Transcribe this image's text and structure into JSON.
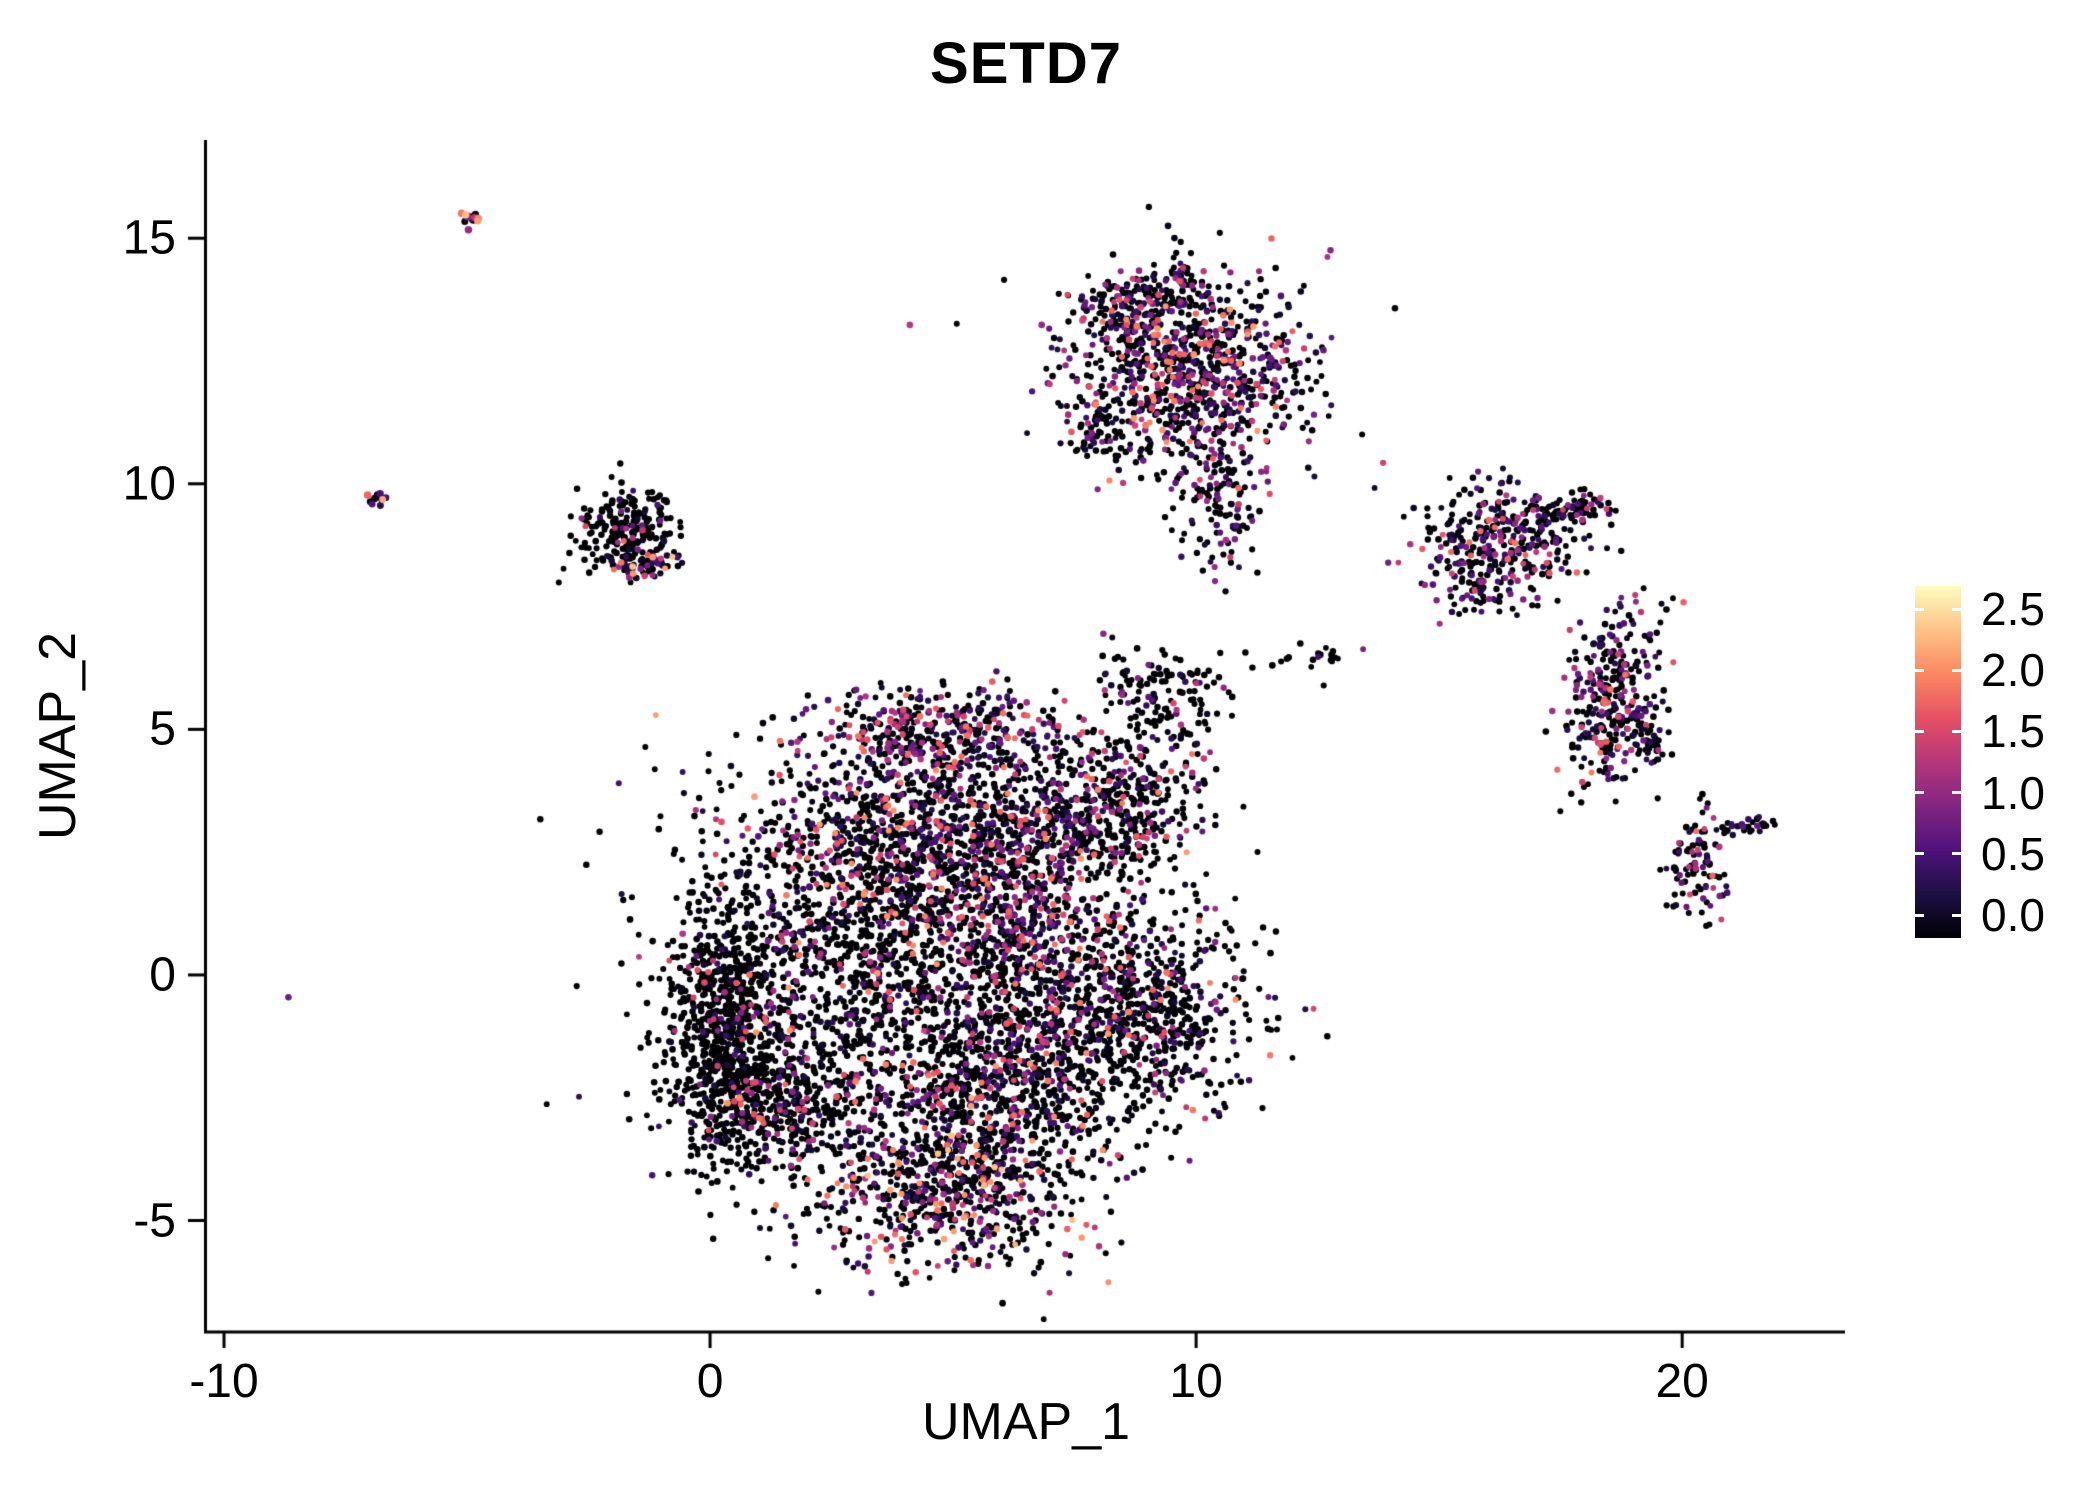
{
  "chart_data": {
    "type": "scatter",
    "title": "SETD7",
    "xlabel": "UMAP_1",
    "ylabel": "UMAP_2",
    "xlim": [
      -10.35,
      23.35
    ],
    "ylim": [
      -7.27,
      17.0
    ],
    "x_ticks": [
      -10,
      0,
      10,
      20
    ],
    "y_ticks": [
      -5,
      0,
      5,
      10,
      15
    ],
    "grid": false,
    "legend_position": "right",
    "colorbar": {
      "limits": [
        0,
        2.5
      ],
      "ticks": [
        0,
        0.5,
        1,
        1.5,
        2,
        2.5
      ],
      "colormap": "magma"
    },
    "colormap_stops": [
      [
        0,
        "#000004"
      ],
      [
        0.125,
        "#1c1044"
      ],
      [
        0.25,
        "#4f127b"
      ],
      [
        0.375,
        "#812581"
      ],
      [
        0.5,
        "#b5367a"
      ],
      [
        0.625,
        "#e55064"
      ],
      [
        0.75,
        "#fb8761"
      ],
      [
        0.875,
        "#fec287"
      ],
      [
        1,
        "#fcfdbf"
      ]
    ],
    "style": {
      "background": "#ffffff",
      "axis_color": "#000000",
      "text_color": "#000000"
    },
    "clusters": [
      {
        "name": "center-top-lobe",
        "n": 380,
        "cx": 4.6,
        "cy": 4.95,
        "sx": 1.25,
        "sy": 0.45,
        "p0": 0.32,
        "max": 1.8,
        "pow": 2.0
      },
      {
        "name": "center-upper-body",
        "n": 760,
        "cx": 4.4,
        "cy": 2.9,
        "sx": 1.9,
        "sy": 0.85,
        "p0": 0.42,
        "max": 2.0,
        "pow": 2.2
      },
      {
        "name": "center-main-body",
        "n": 1700,
        "cx": 3.6,
        "cy": 0.2,
        "sx": 2.1,
        "sy": 1.9,
        "p0": 0.62,
        "max": 2.0,
        "pow": 2.4
      },
      {
        "name": "center-left-arm",
        "n": 760,
        "cx": 0.35,
        "cy": -1.1,
        "sx": 0.55,
        "sy": 1.25,
        "p0": 0.88,
        "max": 1.6,
        "pow": 2.5
      },
      {
        "name": "center-left-lower",
        "n": 320,
        "cx": 1.3,
        "cy": -2.7,
        "sx": 0.95,
        "sy": 0.7,
        "p0": 0.72,
        "max": 2.0,
        "pow": 2.0
      },
      {
        "name": "center-bottom-lobe",
        "n": 730,
        "cx": 4.8,
        "cy": -4.2,
        "sx": 1.5,
        "sy": 0.95,
        "p0": 0.46,
        "max": 2.2,
        "pow": 2.0
      },
      {
        "name": "center-mid-right",
        "n": 600,
        "cx": 6.6,
        "cy": 1.0,
        "sx": 1.0,
        "sy": 1.7,
        "p0": 0.46,
        "max": 1.8,
        "pow": 2.0
      },
      {
        "name": "center-right-upper-lobe",
        "n": 380,
        "cx": 8.4,
        "cy": 3.5,
        "sx": 0.95,
        "sy": 0.75,
        "p0": 0.62,
        "max": 2.0,
        "pow": 2.2
      },
      {
        "name": "center-right-lower-lobe",
        "n": 690,
        "cx": 8.8,
        "cy": -0.7,
        "sx": 1.15,
        "sy": 1.15,
        "p0": 0.66,
        "max": 2.0,
        "pow": 2.2
      },
      {
        "name": "center-upper-sparse",
        "n": 140,
        "cx": 9.3,
        "cy": 5.7,
        "sx": 0.75,
        "sy": 0.65,
        "p0": 0.75,
        "max": 1.5,
        "pow": 2.0
      },
      {
        "name": "center-lower-mid",
        "n": 430,
        "cx": 6.3,
        "cy": -2.2,
        "sx": 1.2,
        "sy": 1.0,
        "p0": 0.6,
        "max": 2.0,
        "pow": 2.2
      },
      {
        "name": "top-main",
        "n": 860,
        "cx": 9.9,
        "cy": 12.3,
        "sx": 1.25,
        "sy": 0.95,
        "p0": 0.44,
        "max": 2.0,
        "pow": 2.0
      },
      {
        "name": "top-left-tip",
        "n": 130,
        "cx": 8.6,
        "cy": 13.6,
        "sx": 0.55,
        "sy": 0.35,
        "p0": 0.42,
        "max": 2.0,
        "pow": 2.0
      },
      {
        "name": "top-tip",
        "n": 45,
        "cx": 9.7,
        "cy": 14.15,
        "sx": 0.22,
        "sy": 0.3,
        "p0": 0.45,
        "max": 1.8,
        "pow": 2.0
      },
      {
        "name": "top-stem",
        "n": 130,
        "cx": 10.5,
        "cy": 9.7,
        "sx": 0.45,
        "sy": 0.75,
        "p0": 0.5,
        "max": 1.8,
        "pow": 2.0
      },
      {
        "name": "top-left-nub",
        "n": 60,
        "cx": 8.0,
        "cy": 11.2,
        "sx": 0.3,
        "sy": 0.4,
        "p0": 0.5,
        "max": 2.0,
        "pow": 2.0
      },
      {
        "name": "right-upper",
        "n": 330,
        "cx": 16.3,
        "cy": 8.8,
        "sx": 0.85,
        "sy": 0.6,
        "p0": 0.44,
        "max": 1.8,
        "pow": 1.8
      },
      {
        "name": "right-upper-tail",
        "n": 70,
        "cx": 17.7,
        "cy": 9.5,
        "sx": 0.5,
        "sy": 0.18,
        "p0": 0.5,
        "max": 1.5,
        "pow": 2.0
      },
      {
        "name": "right-upper-nub",
        "n": 40,
        "cx": 15.6,
        "cy": 7.9,
        "sx": 0.3,
        "sy": 0.25,
        "p0": 0.55,
        "max": 1.5,
        "pow": 2.0
      },
      {
        "name": "right-lower",
        "n": 300,
        "cx": 18.6,
        "cy": 5.7,
        "sx": 0.45,
        "sy": 0.95,
        "rot": -15,
        "p0": 0.46,
        "max": 1.8,
        "pow": 1.8
      },
      {
        "name": "right-lower-nub",
        "n": 50,
        "cx": 19.3,
        "cy": 4.75,
        "sx": 0.25,
        "sy": 0.25,
        "p0": 0.5,
        "max": 1.5,
        "pow": 2.0
      },
      {
        "name": "far-right",
        "n": 95,
        "cx": 20.3,
        "cy": 2.2,
        "sx": 0.3,
        "sy": 0.6,
        "p0": 0.55,
        "max": 1.8,
        "pow": 2.0
      },
      {
        "name": "far-right-dash",
        "n": 35,
        "cx": 21.35,
        "cy": 3.0,
        "sx": 0.35,
        "sy": 0.09,
        "p0": 0.4,
        "max": 1.3,
        "pow": 1.5
      },
      {
        "name": "mid-gap-pair",
        "n": 14,
        "cx": 12.6,
        "cy": 6.5,
        "sx": 0.3,
        "sy": 0.1,
        "p0": 0.8,
        "max": 1.0,
        "pow": 2.0
      },
      {
        "name": "mid-gap-strays",
        "n": 6,
        "cx": 11.9,
        "cy": 6.3,
        "sx": 0.5,
        "sy": 0.25,
        "p0": 0.85,
        "max": 1.0,
        "pow": 2.0
      },
      {
        "name": "left-small",
        "n": 235,
        "cx": -1.75,
        "cy": 9.05,
        "sx": 0.5,
        "sy": 0.45,
        "p0": 0.82,
        "max": 1.8,
        "pow": 2.5
      },
      {
        "name": "left-small-band",
        "n": 55,
        "cx": -1.35,
        "cy": 8.35,
        "sx": 0.35,
        "sy": 0.12,
        "p0": 0.3,
        "max": 2.2,
        "pow": 1.5
      },
      {
        "name": "tiny-top-left",
        "n": 13,
        "cx": -4.92,
        "cy": 15.4,
        "sx": 0.13,
        "sy": 0.1,
        "p0": 0.25,
        "max": 2.3,
        "pow": 1.2,
        "r": 3.6
      },
      {
        "name": "tiny-left",
        "n": 10,
        "cx": -6.82,
        "cy": 9.65,
        "sx": 0.13,
        "sy": 0.09,
        "p0": 0.3,
        "max": 2.2,
        "pow": 1.2,
        "r": 3.6
      },
      {
        "name": "outlier-left",
        "n": 1,
        "cx": -8.7,
        "cy": -0.45,
        "sx": 0.03,
        "sy": 0.03,
        "p0": 0,
        "max": 1.0,
        "pow": 0.3,
        "r": 3.4
      }
    ]
  }
}
